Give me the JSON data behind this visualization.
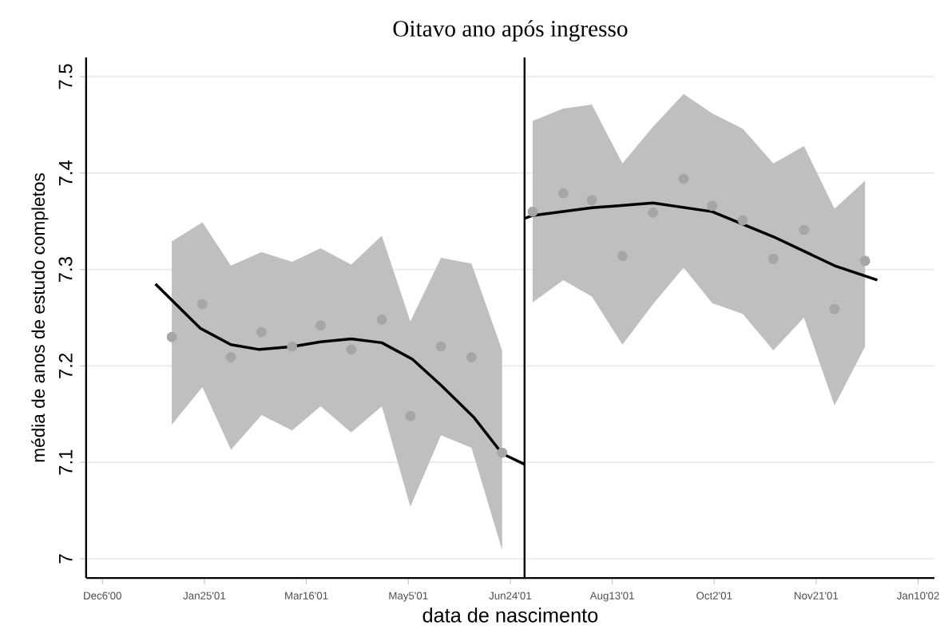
{
  "chart_data": {
    "type": "scatter",
    "title": "Oitavo ano após ingresso",
    "xlabel": "data de nascimento",
    "ylabel": "média de anos de estudo completos",
    "xlim": [
      "2000-11-28",
      "2002-01-18"
    ],
    "ylim": [
      6.98,
      7.52
    ],
    "xticks": [
      {
        "value": "2000-12-06",
        "label": "Dec6'00"
      },
      {
        "value": "2001-01-25",
        "label": "Jan25'01"
      },
      {
        "value": "2001-03-16",
        "label": "Mar16'01"
      },
      {
        "value": "2001-05-05",
        "label": "May5'01"
      },
      {
        "value": "2001-06-24",
        "label": "Jun24'01"
      },
      {
        "value": "2001-08-13",
        "label": "Aug13'01"
      },
      {
        "value": "2001-10-02",
        "label": "Oct2'01"
      },
      {
        "value": "2001-11-21",
        "label": "Nov21'01"
      },
      {
        "value": "2002-01-10",
        "label": "Jan10'02"
      }
    ],
    "yticks": [
      7,
      7.1,
      7.2,
      7.3,
      7.4,
      7.5
    ],
    "grid": "y",
    "marker": "circle",
    "ref_lines": [
      {
        "axis": "x",
        "value": "2001-07-01",
        "color": "#000000"
      }
    ],
    "series": [
      {
        "color": "#a6a6a6",
        "x": [
          "2001-01-09",
          "2001-01-24",
          "2001-02-07",
          "2001-02-22",
          "2001-03-09",
          "2001-03-23",
          "2001-04-07",
          "2001-04-22",
          "2001-05-06",
          "2001-05-21",
          "2001-06-05",
          "2001-06-20"
        ],
        "values": [
          7.23,
          7.264,
          7.209,
          7.235,
          7.22,
          7.242,
          7.217,
          7.248,
          7.148,
          7.22,
          7.209,
          7.11
        ],
        "upper": [
          7.329,
          7.349,
          7.304,
          7.318,
          7.308,
          7.322,
          7.305,
          7.335,
          7.246,
          7.312,
          7.306,
          7.216
        ],
        "lower": [
          7.139,
          7.178,
          7.113,
          7.149,
          7.133,
          7.158,
          7.131,
          7.158,
          7.054,
          7.128,
          7.115,
          7.009
        ]
      },
      {
        "color": "#a6a6a6",
        "x": [
          "2001-07-05",
          "2001-07-20",
          "2001-08-03",
          "2001-08-18",
          "2001-09-02",
          "2001-09-17",
          "2001-10-01",
          "2001-10-16",
          "2001-10-31",
          "2001-11-15",
          "2001-11-30",
          "2001-12-15"
        ],
        "values": [
          7.36,
          7.379,
          7.372,
          7.314,
          7.359,
          7.394,
          7.366,
          7.351,
          7.311,
          7.341,
          7.259,
          7.309
        ],
        "upper": [
          7.454,
          7.467,
          7.471,
          7.41,
          7.448,
          7.482,
          7.462,
          7.446,
          7.41,
          7.428,
          7.363,
          7.392
        ],
        "lower": [
          7.266,
          7.289,
          7.272,
          7.222,
          7.264,
          7.302,
          7.265,
          7.254,
          7.216,
          7.25,
          7.159,
          7.22
        ]
      },
      {
        "type": "line",
        "color": "#000000",
        "marker": "none",
        "x": [
          "2001-01-01",
          "2001-01-23",
          "2001-02-07",
          "2001-02-21",
          "2001-03-09",
          "2001-03-23",
          "2001-04-07",
          "2001-04-22",
          "2001-05-07",
          "2001-05-21",
          "2001-06-06",
          "2001-06-20",
          "2001-07-01"
        ],
        "values": [
          7.285,
          7.239,
          7.222,
          7.217,
          7.22,
          7.225,
          7.228,
          7.224,
          7.207,
          7.18,
          7.147,
          7.109,
          7.098
        ]
      },
      {
        "type": "line",
        "color": "#000000",
        "marker": "none",
        "x": [
          "2001-07-01",
          "2001-07-05",
          "2001-08-03",
          "2001-09-02",
          "2001-10-01",
          "2001-10-31",
          "2001-11-30",
          "2001-12-21"
        ],
        "values": [
          7.353,
          7.356,
          7.364,
          7.369,
          7.36,
          7.334,
          7.304,
          7.289
        ]
      }
    ]
  }
}
